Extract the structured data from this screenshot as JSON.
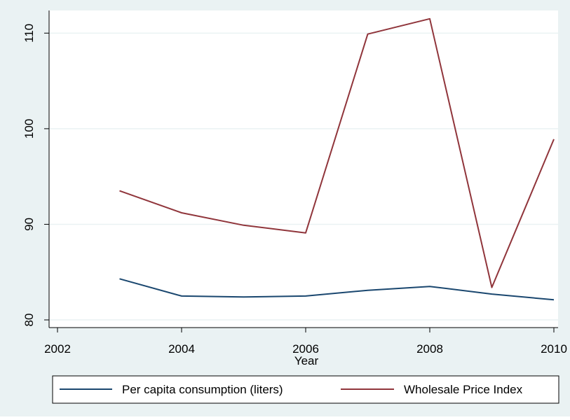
{
  "chart_data": {
    "type": "line",
    "xlabel": "Year",
    "ylabel": "",
    "xlim": [
      2002,
      2010
    ],
    "ylim": [
      80,
      112
    ],
    "x_ticks": [
      "2002",
      "2004",
      "2006",
      "2008",
      "2010"
    ],
    "y_ticks": [
      "80",
      "90",
      "100",
      "110"
    ],
    "grid": true,
    "legend_position": "bottom",
    "x": [
      2003,
      2004,
      2005,
      2006,
      2007,
      2008,
      2009,
      2010
    ],
    "series": [
      {
        "name": "Per capita consumption (liters)",
        "color": "#1a476f",
        "values": [
          84.3,
          82.5,
          82.4,
          82.5,
          83.1,
          83.5,
          82.7,
          82.1
        ]
      },
      {
        "name": "Wholesale Price Index",
        "color": "#90353b",
        "values": [
          93.5,
          91.2,
          89.9,
          89.1,
          109.9,
          111.5,
          83.4,
          98.9
        ]
      }
    ]
  },
  "colors": {
    "outer_background": "#eaf2f3",
    "plot_background": "#ffffff",
    "gridline": "#eaf2f3"
  }
}
